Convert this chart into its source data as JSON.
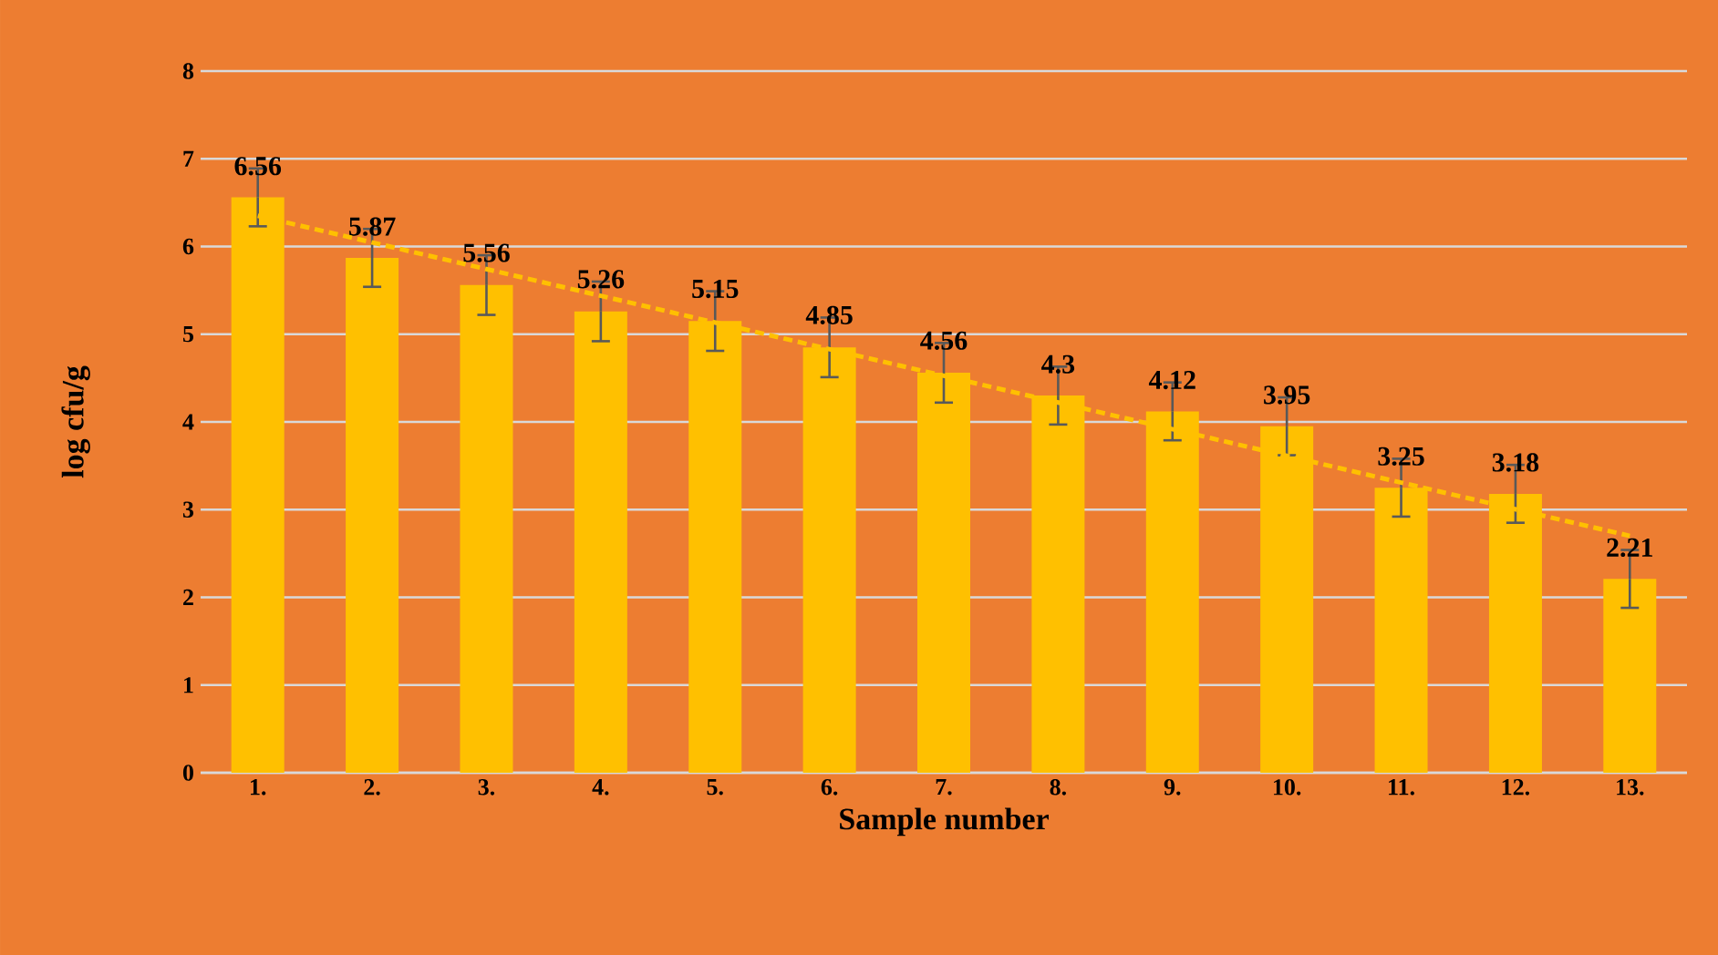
{
  "chart_data": {
    "type": "bar",
    "xlabel": "Sample number",
    "ylabel": "log cfu/g",
    "categories": [
      "1.",
      "2.",
      "3.",
      "4.",
      "5.",
      "6.",
      "7.",
      "8.",
      "9.",
      "10.",
      "11.",
      "12.",
      "13."
    ],
    "series": [
      {
        "color": "#ffc000",
        "values": [
          6.56,
          5.87,
          5.56,
          5.26,
          5.15,
          4.85,
          4.56,
          4.3,
          4.12,
          3.95,
          3.25,
          3.18,
          2.21
        ],
        "errors": [
          0.33,
          0.33,
          0.34,
          0.34,
          0.34,
          0.34,
          0.34,
          0.33,
          0.33,
          0.33,
          0.33,
          0.33,
          0.33
        ],
        "value_labels": [
          "6.56",
          "5.87",
          "5.56",
          "5.26",
          "5.15",
          "4.85",
          "4.56",
          "4.3",
          "4.12",
          "3.95",
          "3.25",
          "3.18",
          "2.21"
        ]
      },
      {
        "type": "line",
        "color": "#ffc000",
        "line_style": "dashed",
        "x": [
          "1.",
          "13."
        ],
        "values": [
          6.35,
          2.7
        ]
      }
    ],
    "ylim": [
      0,
      8
    ],
    "yticks": [
      0,
      1,
      2,
      3,
      4,
      5,
      6,
      7,
      8
    ],
    "grid": "y",
    "legend": false
  }
}
